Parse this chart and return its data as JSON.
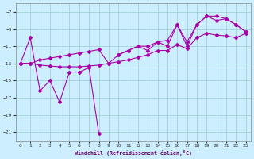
{
  "xlabel": "Windchill (Refroidissement éolien,°C)",
  "background_color": "#cceeff",
  "grid_color": "#99cccc",
  "line_color": "#aa00aa",
  "x_values": [
    0,
    1,
    2,
    3,
    4,
    5,
    6,
    7,
    8,
    9,
    10,
    11,
    12,
    13,
    14,
    15,
    16,
    17,
    18,
    19,
    20,
    21,
    22,
    23
  ],
  "jagged_y": [
    -13.0,
    -10.0,
    -16.2,
    -15.0,
    -17.5,
    -14.0,
    -14.0,
    -13.5,
    -21.2,
    null,
    -12.0,
    -11.5,
    -11.0,
    -11.5,
    -10.5,
    -11.0,
    -8.5,
    -11.0,
    -8.5,
    -7.5,
    -8.0,
    -7.8,
    -8.5,
    -9.3
  ],
  "trend_upper_y": [
    -13.0,
    -13.0,
    -12.6,
    -12.4,
    -12.2,
    -12.0,
    -11.8,
    -11.6,
    -11.4,
    -13.0,
    -12.0,
    -11.5,
    -11.0,
    -11.0,
    -10.5,
    -10.3,
    -8.5,
    -10.5,
    -8.5,
    -7.5,
    -7.5,
    -7.8,
    -8.5,
    -9.3
  ],
  "trend_lower_y": [
    -13.0,
    -13.0,
    -13.2,
    -13.3,
    -13.4,
    -13.4,
    -13.4,
    -13.3,
    -13.2,
    -13.0,
    -12.8,
    -12.6,
    -12.3,
    -12.0,
    -11.5,
    -11.5,
    -10.8,
    -11.3,
    -10.0,
    -9.5,
    -9.7,
    -9.8,
    -10.0,
    -9.5
  ],
  "ylim": [
    -22,
    -6
  ],
  "xlim": [
    -0.5,
    23.5
  ],
  "yticks": [
    -21,
    -19,
    -17,
    -15,
    -13,
    -11,
    -9,
    -7
  ],
  "xticks": [
    0,
    1,
    2,
    3,
    4,
    5,
    6,
    7,
    8,
    9,
    10,
    11,
    12,
    13,
    14,
    15,
    16,
    17,
    18,
    19,
    20,
    21,
    22,
    23
  ]
}
